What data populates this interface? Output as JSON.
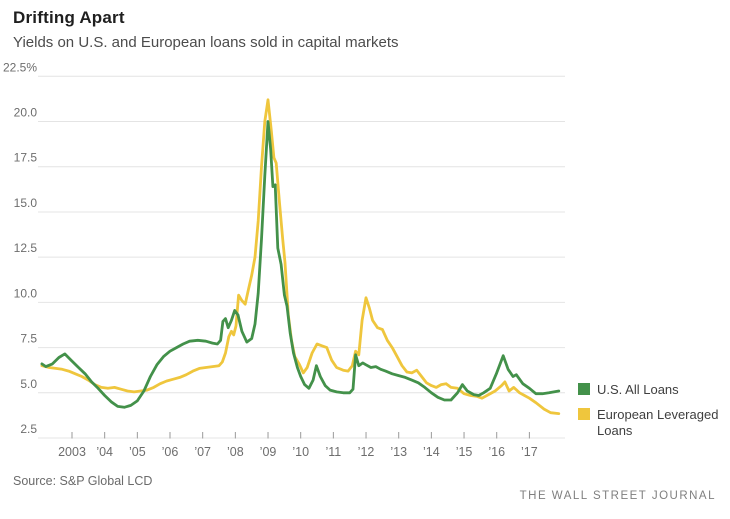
{
  "header": {
    "title": "Drifting Apart",
    "subtitle": "Yields on U.S. and European loans sold in capital markets"
  },
  "legend": {
    "items": [
      {
        "label": "U.S. All Loans",
        "color": "#43914a"
      },
      {
        "label": "European Leveraged Loans",
        "color": "#efc63d"
      }
    ]
  },
  "footer": {
    "source": "Source: S&P Global LCD",
    "brand": "THE WALL STREET JOURNAL"
  },
  "chart_data": {
    "type": "line",
    "title": "Drifting Apart",
    "subtitle": "Yields on U.S. and European loans sold in capital markets",
    "unit": "percent yield",
    "xlim": [
      2002.0,
      2018.0
    ],
    "ylim": [
      2.5,
      22.5
    ],
    "grid": "horizontal",
    "grid_color": "#e4e4e4",
    "tick_color": "#9a9a9a",
    "label_color": "#6d6d6d",
    "legend_position": "right",
    "y_ticks": [
      {
        "v": 22.5,
        "label": "22.5%"
      },
      {
        "v": 20.0,
        "label": "20.0"
      },
      {
        "v": 17.5,
        "label": "17.5"
      },
      {
        "v": 15.0,
        "label": "15.0"
      },
      {
        "v": 12.5,
        "label": "12.5"
      },
      {
        "v": 10.0,
        "label": "10.0"
      },
      {
        "v": 7.5,
        "label": "7.5"
      },
      {
        "v": 5.0,
        "label": "5.0"
      },
      {
        "v": 2.5,
        "label": "2.5"
      }
    ],
    "x_ticks": [
      {
        "v": 2003,
        "label": "2003"
      },
      {
        "v": 2004,
        "label": "’04"
      },
      {
        "v": 2005,
        "label": "’05"
      },
      {
        "v": 2006,
        "label": "’06"
      },
      {
        "v": 2007,
        "label": "’07"
      },
      {
        "v": 2008,
        "label": "’08"
      },
      {
        "v": 2009,
        "label": "’09"
      },
      {
        "v": 2010,
        "label": "’10"
      },
      {
        "v": 2011,
        "label": "’11"
      },
      {
        "v": 2012,
        "label": "’12"
      },
      {
        "v": 2013,
        "label": "’13"
      },
      {
        "v": 2014,
        "label": "’14"
      },
      {
        "v": 2015,
        "label": "’15"
      },
      {
        "v": 2016,
        "label": "’16"
      },
      {
        "v": 2017,
        "label": "’17"
      }
    ],
    "series": [
      {
        "name": "U.S. All Loans",
        "color": "#43914a",
        "points": [
          [
            2002.08,
            6.6
          ],
          [
            2002.2,
            6.45
          ],
          [
            2002.4,
            6.6
          ],
          [
            2002.6,
            6.95
          ],
          [
            2002.78,
            7.15
          ],
          [
            2003.0,
            6.75
          ],
          [
            2003.2,
            6.4
          ],
          [
            2003.4,
            6.05
          ],
          [
            2003.6,
            5.6
          ],
          [
            2003.8,
            5.25
          ],
          [
            2004.0,
            4.85
          ],
          [
            2004.2,
            4.5
          ],
          [
            2004.4,
            4.25
          ],
          [
            2004.6,
            4.2
          ],
          [
            2004.8,
            4.3
          ],
          [
            2005.0,
            4.55
          ],
          [
            2005.2,
            5.1
          ],
          [
            2005.4,
            5.9
          ],
          [
            2005.6,
            6.55
          ],
          [
            2005.8,
            7.0
          ],
          [
            2006.0,
            7.3
          ],
          [
            2006.2,
            7.5
          ],
          [
            2006.4,
            7.7
          ],
          [
            2006.6,
            7.85
          ],
          [
            2006.85,
            7.9
          ],
          [
            2007.1,
            7.85
          ],
          [
            2007.3,
            7.75
          ],
          [
            2007.45,
            7.7
          ],
          [
            2007.55,
            7.9
          ],
          [
            2007.62,
            8.95
          ],
          [
            2007.7,
            9.1
          ],
          [
            2007.78,
            8.6
          ],
          [
            2007.88,
            9.0
          ],
          [
            2007.98,
            9.55
          ],
          [
            2008.08,
            9.3
          ],
          [
            2008.2,
            8.4
          ],
          [
            2008.35,
            7.8
          ],
          [
            2008.5,
            8.0
          ],
          [
            2008.6,
            8.8
          ],
          [
            2008.7,
            10.5
          ],
          [
            2008.8,
            13.5
          ],
          [
            2008.9,
            17.0
          ],
          [
            2009.0,
            20.0
          ],
          [
            2009.08,
            18.5
          ],
          [
            2009.15,
            16.4
          ],
          [
            2009.22,
            16.5
          ],
          [
            2009.3,
            13.0
          ],
          [
            2009.4,
            12.1
          ],
          [
            2009.5,
            10.4
          ],
          [
            2009.58,
            9.8
          ],
          [
            2009.68,
            8.3
          ],
          [
            2009.78,
            7.2
          ],
          [
            2009.9,
            6.4
          ],
          [
            2010.0,
            5.9
          ],
          [
            2010.12,
            5.45
          ],
          [
            2010.25,
            5.25
          ],
          [
            2010.38,
            5.7
          ],
          [
            2010.48,
            6.5
          ],
          [
            2010.6,
            5.9
          ],
          [
            2010.75,
            5.4
          ],
          [
            2010.9,
            5.15
          ],
          [
            2011.1,
            5.05
          ],
          [
            2011.3,
            5.0
          ],
          [
            2011.5,
            5.0
          ],
          [
            2011.6,
            5.2
          ],
          [
            2011.68,
            7.1
          ],
          [
            2011.78,
            6.5
          ],
          [
            2011.9,
            6.65
          ],
          [
            2012.0,
            6.55
          ],
          [
            2012.15,
            6.4
          ],
          [
            2012.3,
            6.45
          ],
          [
            2012.45,
            6.3
          ],
          [
            2012.6,
            6.2
          ],
          [
            2012.8,
            6.05
          ],
          [
            2013.0,
            5.95
          ],
          [
            2013.2,
            5.85
          ],
          [
            2013.4,
            5.7
          ],
          [
            2013.6,
            5.55
          ],
          [
            2013.8,
            5.3
          ],
          [
            2014.0,
            5.0
          ],
          [
            2014.2,
            4.75
          ],
          [
            2014.4,
            4.6
          ],
          [
            2014.6,
            4.6
          ],
          [
            2014.8,
            5.0
          ],
          [
            2014.95,
            5.45
          ],
          [
            2015.1,
            5.1
          ],
          [
            2015.3,
            4.9
          ],
          [
            2015.45,
            4.85
          ],
          [
            2015.6,
            5.0
          ],
          [
            2015.8,
            5.25
          ],
          [
            2016.0,
            6.1
          ],
          [
            2016.2,
            7.05
          ],
          [
            2016.35,
            6.3
          ],
          [
            2016.5,
            5.9
          ],
          [
            2016.6,
            6.0
          ],
          [
            2016.8,
            5.5
          ],
          [
            2017.0,
            5.25
          ],
          [
            2017.2,
            4.95
          ],
          [
            2017.4,
            4.95
          ],
          [
            2017.6,
            5.0
          ],
          [
            2017.9,
            5.1
          ]
        ]
      },
      {
        "name": "European Leveraged Loans",
        "color": "#efc63d",
        "points": [
          [
            2002.08,
            6.5
          ],
          [
            2002.3,
            6.4
          ],
          [
            2002.5,
            6.35
          ],
          [
            2002.7,
            6.3
          ],
          [
            2002.9,
            6.2
          ],
          [
            2003.1,
            6.05
          ],
          [
            2003.3,
            5.9
          ],
          [
            2003.5,
            5.7
          ],
          [
            2003.7,
            5.45
          ],
          [
            2003.9,
            5.3
          ],
          [
            2004.1,
            5.25
          ],
          [
            2004.3,
            5.3
          ],
          [
            2004.5,
            5.2
          ],
          [
            2004.7,
            5.1
          ],
          [
            2004.9,
            5.05
          ],
          [
            2005.1,
            5.1
          ],
          [
            2005.3,
            5.15
          ],
          [
            2005.5,
            5.3
          ],
          [
            2005.7,
            5.5
          ],
          [
            2005.9,
            5.65
          ],
          [
            2006.1,
            5.75
          ],
          [
            2006.3,
            5.85
          ],
          [
            2006.5,
            6.0
          ],
          [
            2006.7,
            6.2
          ],
          [
            2006.9,
            6.35
          ],
          [
            2007.1,
            6.4
          ],
          [
            2007.3,
            6.45
          ],
          [
            2007.5,
            6.5
          ],
          [
            2007.6,
            6.7
          ],
          [
            2007.7,
            7.2
          ],
          [
            2007.8,
            8.1
          ],
          [
            2007.88,
            8.4
          ],
          [
            2007.95,
            8.2
          ],
          [
            2008.02,
            8.7
          ],
          [
            2008.1,
            10.4
          ],
          [
            2008.2,
            10.1
          ],
          [
            2008.3,
            9.9
          ],
          [
            2008.4,
            10.7
          ],
          [
            2008.5,
            11.5
          ],
          [
            2008.6,
            12.5
          ],
          [
            2008.7,
            14.5
          ],
          [
            2008.8,
            17.5
          ],
          [
            2008.9,
            20.0
          ],
          [
            2009.0,
            21.2
          ],
          [
            2009.1,
            19.5
          ],
          [
            2009.18,
            18.0
          ],
          [
            2009.25,
            17.7
          ],
          [
            2009.35,
            15.5
          ],
          [
            2009.45,
            13.5
          ],
          [
            2009.52,
            12.2
          ],
          [
            2009.62,
            9.3
          ],
          [
            2009.72,
            7.9
          ],
          [
            2009.82,
            7.0
          ],
          [
            2009.95,
            6.6
          ],
          [
            2010.08,
            6.1
          ],
          [
            2010.2,
            6.4
          ],
          [
            2010.35,
            7.2
          ],
          [
            2010.5,
            7.7
          ],
          [
            2010.65,
            7.6
          ],
          [
            2010.8,
            7.5
          ],
          [
            2010.95,
            6.8
          ],
          [
            2011.1,
            6.4
          ],
          [
            2011.3,
            6.25
          ],
          [
            2011.45,
            6.2
          ],
          [
            2011.58,
            6.5
          ],
          [
            2011.68,
            7.3
          ],
          [
            2011.78,
            7.1
          ],
          [
            2011.88,
            9.0
          ],
          [
            2012.0,
            10.25
          ],
          [
            2012.1,
            9.7
          ],
          [
            2012.2,
            9.0
          ],
          [
            2012.35,
            8.6
          ],
          [
            2012.5,
            8.5
          ],
          [
            2012.65,
            7.9
          ],
          [
            2012.8,
            7.5
          ],
          [
            2012.95,
            7.0
          ],
          [
            2013.1,
            6.5
          ],
          [
            2013.25,
            6.15
          ],
          [
            2013.4,
            6.1
          ],
          [
            2013.55,
            6.25
          ],
          [
            2013.7,
            5.9
          ],
          [
            2013.85,
            5.55
          ],
          [
            2014.0,
            5.4
          ],
          [
            2014.15,
            5.3
          ],
          [
            2014.3,
            5.45
          ],
          [
            2014.45,
            5.5
          ],
          [
            2014.6,
            5.3
          ],
          [
            2014.8,
            5.25
          ],
          [
            2015.0,
            4.95
          ],
          [
            2015.2,
            4.85
          ],
          [
            2015.4,
            4.8
          ],
          [
            2015.55,
            4.7
          ],
          [
            2015.75,
            4.9
          ],
          [
            2015.95,
            5.1
          ],
          [
            2016.15,
            5.4
          ],
          [
            2016.25,
            5.6
          ],
          [
            2016.38,
            5.1
          ],
          [
            2016.52,
            5.3
          ],
          [
            2016.7,
            5.0
          ],
          [
            2016.85,
            4.85
          ],
          [
            2017.0,
            4.7
          ],
          [
            2017.2,
            4.45
          ],
          [
            2017.45,
            4.1
          ],
          [
            2017.65,
            3.9
          ],
          [
            2017.9,
            3.85
          ]
        ]
      }
    ]
  }
}
